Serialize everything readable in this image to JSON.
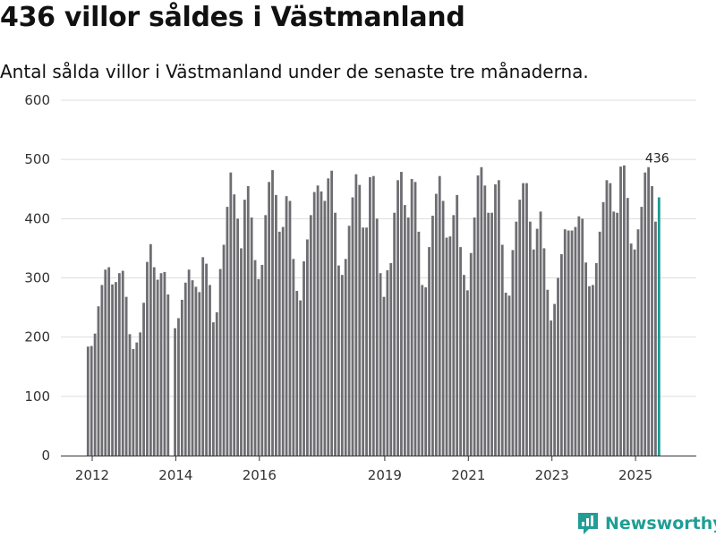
{
  "header": {
    "title": "436 villor såldes i Västmanland",
    "subtitle": "Antal sålda villor i Västmanland under de senaste tre månaderna."
  },
  "brand": {
    "name": "Newsworthy",
    "color": "#1f9e95"
  },
  "colors": {
    "bar": "#6e6d72",
    "highlight": "#1a9a91",
    "grid": "#dddddd",
    "axis": "#333333"
  },
  "chart_data": {
    "type": "bar",
    "title": "436 villor såldes i Västmanland",
    "xlabel": "",
    "ylabel": "",
    "ylim": [
      0,
      600
    ],
    "yticks": [
      0,
      100,
      200,
      300,
      400,
      500,
      600
    ],
    "xticks": [
      {
        "label": "2012",
        "x": 2012.0
      },
      {
        "label": "2014",
        "x": 2014.0
      },
      {
        "label": "2016",
        "x": 2016.0
      },
      {
        "label": "2019",
        "x": 2019.0
      },
      {
        "label": "2021",
        "x": 2021.0
      },
      {
        "label": "2023",
        "x": 2023.0
      },
      {
        "label": "2025",
        "x": 2025.0
      }
    ],
    "x_start": 2011.9,
    "x_step": 0.0833,
    "highlight_label": "436",
    "values": [
      184,
      185,
      206,
      252,
      288,
      314,
      318,
      289,
      293,
      308,
      312,
      268,
      205,
      180,
      191,
      208,
      258,
      327,
      357,
      318,
      297,
      308,
      310,
      272,
      null,
      215,
      232,
      263,
      292,
      314,
      296,
      285,
      276,
      335,
      324,
      288,
      225,
      242,
      315,
      356,
      420,
      478,
      441,
      400,
      350,
      432,
      455,
      402,
      330,
      298,
      322,
      406,
      462,
      482,
      440,
      378,
      386,
      438,
      430,
      332,
      278,
      262,
      328,
      365,
      406,
      445,
      456,
      446,
      430,
      468,
      481,
      410,
      321,
      305,
      332,
      388,
      436,
      475,
      457,
      385,
      385,
      470,
      472,
      400,
      308,
      268,
      313,
      325,
      410,
      465,
      479,
      423,
      402,
      467,
      462,
      378,
      288,
      284,
      352,
      405,
      442,
      472,
      430,
      368,
      370,
      406,
      440,
      352,
      305,
      279,
      342,
      402,
      473,
      487,
      456,
      410,
      410,
      458,
      465,
      356,
      275,
      270,
      347,
      395,
      432,
      460,
      460,
      395,
      348,
      383,
      412,
      350,
      280,
      228,
      256,
      300,
      340,
      382,
      380,
      380,
      386,
      404,
      400,
      326,
      286,
      288,
      325,
      378,
      428,
      465,
      460,
      412,
      410,
      488,
      490,
      435,
      358,
      348,
      382,
      420,
      478,
      487,
      455,
      395,
      436
    ]
  }
}
